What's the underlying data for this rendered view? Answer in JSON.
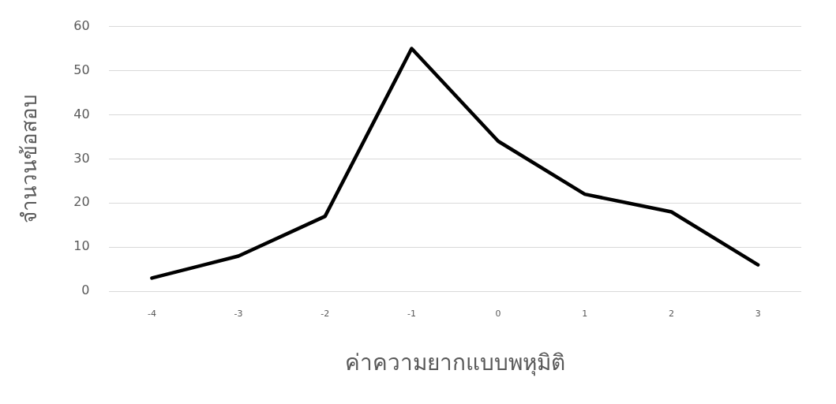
{
  "chart_data": {
    "type": "line",
    "xlabel": "ค่าความยากแบบพหุมิติ",
    "ylabel": "จำนวนข้อสอบ",
    "categories": [
      "-4",
      "-3",
      "-2",
      "-1",
      "0",
      "1",
      "2",
      "3"
    ],
    "series": [
      {
        "color": "#000000",
        "values": [
          3,
          8,
          17,
          55,
          34,
          22,
          18,
          6
        ]
      }
    ],
    "ylim": [
      0,
      60
    ],
    "yticks": [
      0,
      10,
      20,
      30,
      40,
      50,
      60
    ],
    "grid": "y",
    "legend": false,
    "marker": "none",
    "line_style": "solid"
  }
}
